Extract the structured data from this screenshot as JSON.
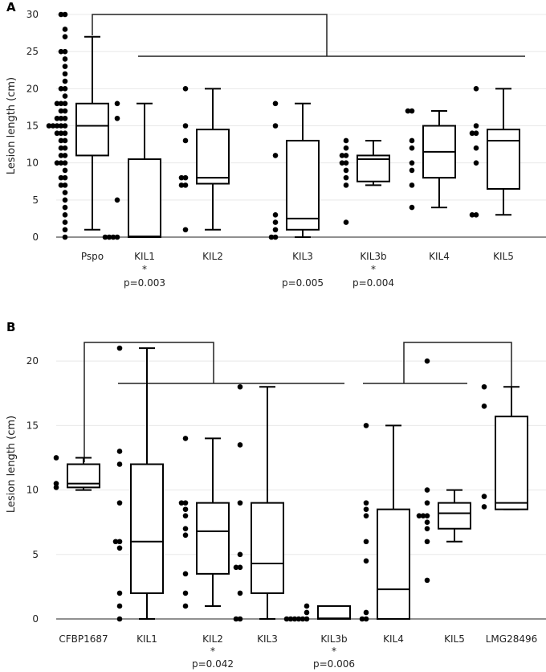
{
  "chart_data": [
    {
      "panel": "A",
      "type": "box",
      "ylabel": "Lesion length (cm)",
      "ylim": [
        0,
        30
      ],
      "yticks": [
        0,
        5,
        10,
        15,
        20,
        25,
        30
      ],
      "grid": true,
      "groups": [
        {
          "name": "Pspo",
          "q1": 11,
          "median": 15,
          "q3": 18,
          "whisker_low": 1,
          "whisker_high": 27,
          "points": [
            0,
            1,
            2,
            3,
            4,
            5,
            6,
            7,
            7,
            8,
            8,
            9,
            10,
            10,
            10,
            11,
            11,
            12,
            12,
            13,
            13,
            14,
            14,
            14,
            15,
            15,
            15,
            15,
            15,
            16,
            16,
            16,
            17,
            17,
            18,
            18,
            18,
            19,
            20,
            20,
            21,
            22,
            23,
            24,
            25,
            25,
            27,
            28,
            30,
            30
          ]
        },
        {
          "name": "KIL1",
          "q1": 0,
          "median": 0.1,
          "q3": 10.5,
          "whisker_low": 0,
          "whisker_high": 18,
          "points": [
            0,
            0,
            0,
            0,
            5,
            16,
            18
          ]
        },
        {
          "name": "KIL2",
          "q1": 7.2,
          "median": 8,
          "q3": 14.5,
          "whisker_low": 1,
          "whisker_high": 20,
          "points": [
            1,
            7,
            7,
            8,
            8,
            13,
            15,
            20
          ]
        },
        {
          "name": "KIL3",
          "q1": 1,
          "median": 2.5,
          "q3": 13,
          "whisker_low": 0,
          "whisker_high": 18,
          "points": [
            0,
            0,
            1,
            2,
            3,
            11,
            15,
            18
          ]
        },
        {
          "name": "KIL3b",
          "q1": 7.5,
          "median": 10.5,
          "q3": 11,
          "whisker_low": 7,
          "whisker_high": 13,
          "points": [
            2,
            7,
            8,
            9,
            10,
            10,
            11,
            11,
            12,
            13
          ]
        },
        {
          "name": "KIL4",
          "q1": 8,
          "median": 11.5,
          "q3": 15,
          "whisker_low": 4,
          "whisker_high": 17,
          "points": [
            4,
            7,
            9,
            10,
            12,
            13,
            17,
            17
          ]
        },
        {
          "name": "KIL5",
          "q1": 6.5,
          "median": 13,
          "q3": 14.5,
          "whisker_low": 3,
          "whisker_high": 20,
          "points": [
            3,
            3,
            10,
            12,
            14,
            14,
            15,
            20
          ]
        }
      ],
      "annotations": [
        {
          "group": "KIL1",
          "star": "*",
          "text": "p=0.003"
        },
        {
          "group": "KIL3",
          "star": "",
          "text": "p=0.005"
        },
        {
          "group": "KIL3b",
          "star": "*",
          "text": "p=0.004"
        }
      ]
    },
    {
      "panel": "B",
      "type": "box",
      "ylabel": "Lesion length (cm)",
      "ylim": [
        0,
        24
      ],
      "yticks": [
        0,
        5,
        10,
        15,
        20
      ],
      "grid": true,
      "groups": [
        {
          "name": "CFBP1687",
          "q1": 10.2,
          "median": 10.5,
          "q3": 12,
          "whisker_low": 10,
          "whisker_high": 12.5,
          "points": [
            10.2,
            10.5,
            12.5
          ]
        },
        {
          "name": "KIL1",
          "q1": 2,
          "median": 6,
          "q3": 12,
          "whisker_low": 0,
          "whisker_high": 21,
          "points": [
            0,
            1,
            2,
            5.5,
            6,
            6,
            9,
            12,
            13,
            21
          ]
        },
        {
          "name": "KIL2",
          "q1": 3.5,
          "median": 6.8,
          "q3": 9,
          "whisker_low": 1,
          "whisker_high": 14,
          "points": [
            1,
            2,
            3.5,
            6.5,
            7,
            8,
            8.5,
            9,
            9,
            14
          ]
        },
        {
          "name": "KIL3",
          "q1": 2,
          "median": 4.3,
          "q3": 9,
          "whisker_low": 0,
          "whisker_high": 18,
          "points": [
            0,
            0,
            2,
            4,
            4,
            5,
            9,
            13.5,
            18
          ]
        },
        {
          "name": "KIL3b",
          "q1": 0,
          "median": 0.05,
          "q3": 1,
          "whisker_low": 0,
          "whisker_high": 1,
          "points": [
            0,
            0,
            0,
            0,
            0,
            0,
            0.5,
            1
          ]
        },
        {
          "name": "KIL4",
          "q1": 0,
          "median": 2.3,
          "q3": 8.5,
          "whisker_low": 0,
          "whisker_high": 15,
          "points": [
            0,
            0,
            0.5,
            4.5,
            6,
            8,
            8.5,
            9,
            15
          ]
        },
        {
          "name": "KIL5",
          "q1": 7,
          "median": 8.2,
          "q3": 9,
          "whisker_low": 6,
          "whisker_high": 10,
          "points": [
            3,
            6,
            7,
            7.5,
            8,
            8,
            8,
            9,
            10,
            20
          ]
        },
        {
          "name": "LMG28496",
          "q1": 8.5,
          "median": 9,
          "q3": 15.7,
          "whisker_low": 8.5,
          "whisker_high": 18,
          "points": [
            8.7,
            9.5,
            16.5,
            18
          ]
        }
      ],
      "annotations": [
        {
          "group": "KIL2",
          "star": "*",
          "text": "p=0.042"
        },
        {
          "group": "KIL3b",
          "star": "*",
          "text": "p=0.006"
        }
      ]
    }
  ]
}
